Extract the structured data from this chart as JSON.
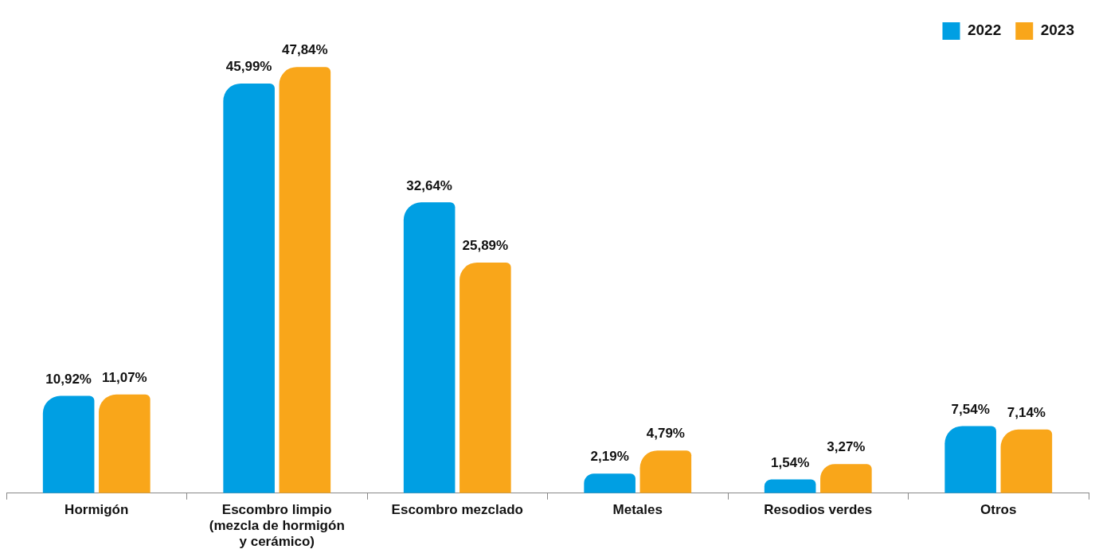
{
  "chart_data": {
    "type": "bar",
    "categories": [
      "Hormigón",
      "Escombro limpio (mezcla de hormigón y cerámico)",
      "Escombro mezclado",
      "Metales",
      "Resodios verdes",
      "Otros"
    ],
    "series": [
      {
        "name": "2022",
        "color": "#009fe3",
        "values": [
          10.92,
          45.99,
          32.64,
          2.19,
          1.54,
          7.54
        ],
        "value_labels": [
          "10,92%",
          "45,99%",
          "32,64%",
          "2,19%",
          "1,54%",
          "7,54%"
        ]
      },
      {
        "name": "2023",
        "color": "#f9a61a",
        "values": [
          11.07,
          47.84,
          25.89,
          4.79,
          3.27,
          7.14
        ],
        "value_labels": [
          "11,07%",
          "47,84%",
          "25,89%",
          "4,79%",
          "3,27%",
          "7,14%"
        ]
      }
    ],
    "legend": "top right",
    "grid": false
  }
}
